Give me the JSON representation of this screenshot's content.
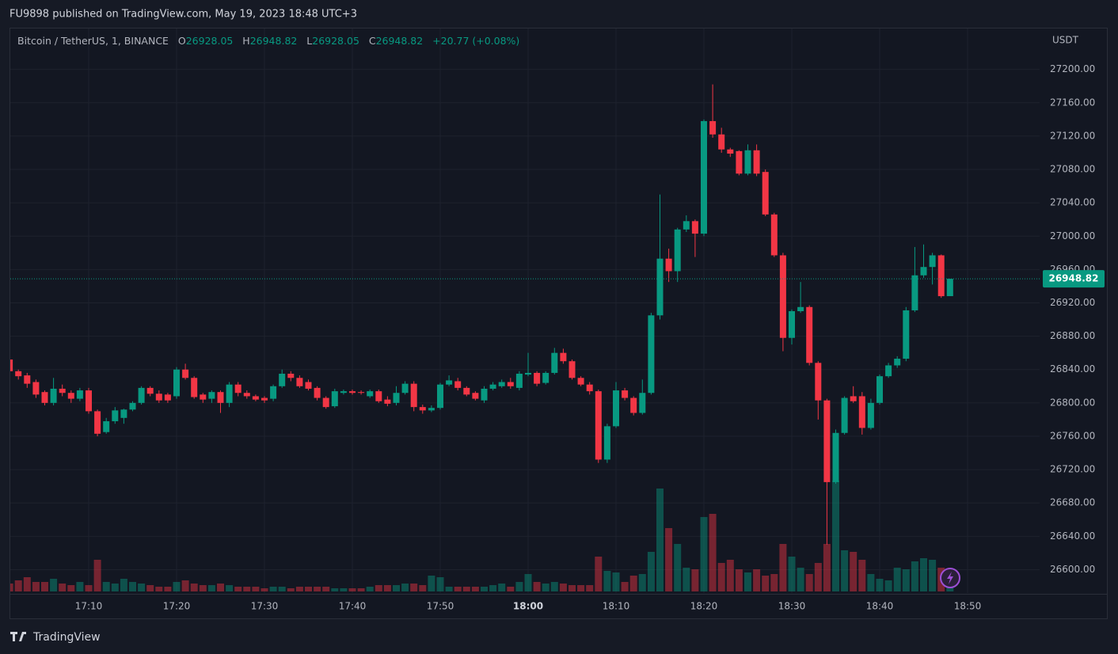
{
  "header": {
    "published": "FU9898 published on TradingView.com, May 19, 2023 18:48 UTC+3",
    "brand": "TradingView"
  },
  "chart_data": {
    "type": "candlestick",
    "title": "Bitcoin / TetherUS, 1, BINANCE",
    "ohlc_labels": [
      "O",
      "H",
      "L",
      "C"
    ],
    "change": "+20.77 (+0.08%)",
    "y_axis_label": "USDT",
    "up_color": "#089981",
    "down_color": "#f23645",
    "grid": true,
    "x": [
      "17:01",
      "17:02",
      "17:03",
      "17:04",
      "17:05",
      "17:06",
      "17:07",
      "17:08",
      "17:09",
      "17:10",
      "17:11",
      "17:12",
      "17:13",
      "17:14",
      "17:15",
      "17:16",
      "17:17",
      "17:18",
      "17:19",
      "17:20",
      "17:21",
      "17:22",
      "17:23",
      "17:24",
      "17:25",
      "17:26",
      "17:27",
      "17:28",
      "17:29",
      "17:30",
      "17:31",
      "17:32",
      "17:33",
      "17:34",
      "17:35",
      "17:36",
      "17:37",
      "17:38",
      "17:39",
      "17:40",
      "17:41",
      "17:42",
      "17:43",
      "17:44",
      "17:45",
      "17:46",
      "17:47",
      "17:48",
      "17:49",
      "17:50",
      "17:51",
      "17:52",
      "17:53",
      "17:54",
      "17:55",
      "17:56",
      "17:57",
      "17:58",
      "17:59",
      "18:00",
      "18:01",
      "18:02",
      "18:03",
      "18:04",
      "18:05",
      "18:06",
      "18:07",
      "18:08",
      "18:09",
      "18:10",
      "18:11",
      "18:12",
      "18:13",
      "18:14",
      "18:15",
      "18:16",
      "18:17",
      "18:18",
      "18:19",
      "18:20",
      "18:21",
      "18:22",
      "18:23",
      "18:24",
      "18:25",
      "18:26",
      "18:27",
      "18:28",
      "18:29",
      "18:30",
      "18:31",
      "18:32",
      "18:33",
      "18:34",
      "18:35",
      "18:36",
      "18:37",
      "18:38",
      "18:39",
      "18:40",
      "18:41",
      "18:42",
      "18:43",
      "18:44",
      "18:45",
      "18:46",
      "18:47",
      "18:48"
    ],
    "open": [
      26852,
      26838,
      26833,
      26825,
      26813,
      26800,
      26817,
      26812,
      26805,
      26815,
      26790,
      26765,
      26778,
      26782,
      26792,
      26800,
      26818,
      26811,
      26810,
      26808,
      26840,
      26830,
      26810,
      26805,
      26813,
      26800,
      26822,
      26812,
      26808,
      26806,
      26805,
      26820,
      26835,
      26830,
      26825,
      26818,
      26806,
      26796,
      26812,
      26814,
      26813,
      26808,
      26814,
      26804,
      26800,
      26812,
      26823,
      26795,
      26791,
      26794,
      26822,
      26826,
      26818,
      26812,
      26803,
      26817,
      26820,
      26825,
      26818,
      26834,
      26836,
      26824,
      26836,
      26860,
      26850,
      26830,
      26822,
      26814,
      26732,
      26772,
      26815,
      26806,
      26788,
      26812,
      26905,
      26973,
      26958,
      27008,
      27018,
      27003,
      27138,
      27122,
      27104,
      27102,
      27075,
      27103,
      27077,
      27026,
      26977,
      26878,
      26910,
      26915,
      26848,
      26803,
      26705,
      26764,
      26808,
      26808,
      26770,
      26800,
      26832,
      26845,
      26853,
      26911,
      26953,
      26963,
      26977,
      26928.05
    ],
    "high": [
      26855,
      26840,
      26836,
      26828,
      26815,
      26830,
      26822,
      26815,
      26818,
      26818,
      26792,
      26782,
      26795,
      26793,
      26802,
      26820,
      26820,
      26815,
      26812,
      26843,
      26847,
      26832,
      26812,
      26815,
      26815,
      26825,
      26825,
      26815,
      26810,
      26808,
      26822,
      26840,
      26838,
      26833,
      26828,
      26820,
      26808,
      26817,
      26816,
      26816,
      26815,
      26816,
      26816,
      26808,
      26820,
      26826,
      26826,
      26798,
      26797,
      26824,
      26833,
      26830,
      26820,
      26814,
      26820,
      26825,
      26828,
      26830,
      26838,
      26860,
      26838,
      26838,
      26866,
      26865,
      26852,
      26832,
      26825,
      26816,
      26775,
      26825,
      26818,
      26808,
      26828,
      26908,
      27050,
      26985,
      27010,
      27025,
      27020,
      27140,
      27182,
      27130,
      27106,
      27103,
      27110,
      27110,
      27080,
      27028,
      26980,
      26912,
      26945,
      26917,
      26850,
      26805,
      26768,
      26808,
      26820,
      26813,
      26805,
      26834,
      26848,
      26856,
      26915,
      26987,
      26990,
      26980,
      26978,
      26948.82
    ],
    "low": [
      26835,
      26828,
      26818,
      26806,
      26797,
      26797,
      26808,
      26800,
      26802,
      26787,
      26760,
      26763,
      26775,
      26775,
      26790,
      26798,
      26808,
      26800,
      26800,
      26805,
      26828,
      26805,
      26800,
      26800,
      26788,
      26795,
      26808,
      26805,
      26802,
      26800,
      26802,
      26818,
      26826,
      26818,
      26815,
      26803,
      26793,
      26794,
      26810,
      26810,
      26810,
      26806,
      26800,
      26796,
      26797,
      26810,
      26790,
      26787,
      26789,
      26792,
      26820,
      26815,
      26808,
      26803,
      26800,
      26815,
      26818,
      26817,
      26815,
      26832,
      26820,
      26822,
      26834,
      26847,
      26828,
      26820,
      26810,
      26728,
      26728,
      26770,
      26803,
      26785,
      26786,
      26810,
      26900,
      26945,
      26945,
      27005,
      26975,
      27000,
      27118,
      27100,
      27095,
      27073,
      27073,
      27072,
      27024,
      26975,
      26862,
      26870,
      26908,
      26845,
      26780,
      26630,
      26703,
      26762,
      26800,
      26762,
      26768,
      26798,
      26830,
      26842,
      26850,
      26909,
      26950,
      26942,
      26926,
      26928.05
    ],
    "close": [
      26838,
      26832,
      26823,
      26810,
      26800,
      26817,
      26812,
      26805,
      26815,
      26790,
      26763,
      26778,
      26791,
      26792,
      26800,
      26818,
      26811,
      26803,
      26803,
      26840,
      26830,
      26807,
      26804,
      26813,
      26800,
      26822,
      26812,
      26808,
      26804,
      26803,
      26820,
      26835,
      26830,
      26820,
      26817,
      26806,
      26795,
      26814,
      26814,
      26812,
      26812,
      26814,
      26802,
      26799,
      26812,
      26823,
      26795,
      26791,
      26794,
      26822,
      26827,
      26818,
      26810,
      26805,
      26817,
      26822,
      26825,
      26820,
      26835,
      26836,
      26823,
      26836,
      26860,
      26850,
      26830,
      26822,
      26814,
      26732,
      26772,
      26815,
      26806,
      26788,
      26812,
      26905,
      26973,
      26958,
      27008,
      27018,
      27003,
      27138,
      27122,
      27104,
      27099,
      27075,
      27103,
      27075,
      27026,
      26977,
      26878,
      26910,
      26915,
      26848,
      26803,
      26705,
      26764,
      26806,
      26802,
      26770,
      26800,
      26832,
      26845,
      26853,
      26911,
      26953,
      26963,
      26977,
      26928,
      26948.82
    ],
    "volume": [
      10,
      14,
      18,
      12,
      12,
      16,
      10,
      8,
      12,
      8,
      40,
      12,
      10,
      16,
      12,
      10,
      8,
      6,
      6,
      12,
      14,
      10,
      8,
      8,
      10,
      8,
      6,
      6,
      6,
      4,
      6,
      6,
      4,
      6,
      6,
      6,
      6,
      4,
      4,
      4,
      4,
      6,
      8,
      8,
      8,
      10,
      10,
      8,
      20,
      18,
      6,
      6,
      6,
      6,
      6,
      8,
      10,
      6,
      12,
      22,
      12,
      10,
      12,
      10,
      8,
      8,
      8,
      44,
      26,
      24,
      12,
      20,
      22,
      50,
      130,
      80,
      60,
      30,
      28,
      94,
      98,
      36,
      40,
      28,
      24,
      28,
      20,
      22,
      60,
      44,
      30,
      22,
      36,
      60,
      140,
      52,
      50,
      40,
      22,
      16,
      14,
      30,
      28,
      38,
      42,
      40,
      30,
      6
    ],
    "ylim": [
      26571,
      27250
    ],
    "yticks": [
      {
        "value": 26600,
        "label": "26600.00"
      },
      {
        "value": 26640,
        "label": "26640.00"
      },
      {
        "value": 26680,
        "label": "26680.00"
      },
      {
        "value": 26720,
        "label": "26720.00"
      },
      {
        "value": 26760,
        "label": "26760.00"
      },
      {
        "value": 26800,
        "label": "26800.00"
      },
      {
        "value": 26840,
        "label": "26840.00"
      },
      {
        "value": 26880,
        "label": "26880.00"
      },
      {
        "value": 26920,
        "label": "26920.00"
      },
      {
        "value": 26960,
        "label": "26960.00"
      },
      {
        "value": 27000,
        "label": "27000.00"
      },
      {
        "value": 27040,
        "label": "27040.00"
      },
      {
        "value": 27080,
        "label": "27080.00"
      },
      {
        "value": 27120,
        "label": "27120.00"
      },
      {
        "value": 27160,
        "label": "27160.00"
      },
      {
        "value": 27200,
        "label": "27200.00"
      }
    ],
    "xticks": [
      "17:10",
      "17:20",
      "17:30",
      "17:40",
      "17:50",
      "18:00",
      "18:10",
      "18:20",
      "18:30",
      "18:40",
      "18:50"
    ]
  }
}
